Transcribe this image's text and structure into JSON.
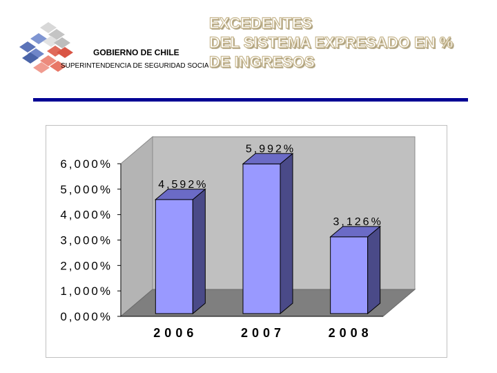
{
  "header": {
    "org_name": "GOBIERNO DE CHILE",
    "org_sub": "SUPERINTENDENCIA DE SEGURIDAD SOCIAL",
    "title_lines": [
      "EXCEDENTES",
      "DEL SISTEMA EXPRESADO EN %",
      "DE INGRESOS"
    ]
  },
  "colors": {
    "bar_front": "#9999ff",
    "bar_side": "#4a4a88",
    "bar_top": "#6b6bc6",
    "wall": "#c0c0c0",
    "floor": "#7f7f7f",
    "rule": "#000094"
  },
  "chart_data": {
    "type": "bar",
    "title": "EXCEDENTES DEL SISTEMA EXPRESADO EN % DE INGRESOS",
    "categories": [
      "2006",
      "2007",
      "2008"
    ],
    "values": [
      4.592,
      5.992,
      3.126
    ],
    "data_labels": [
      "4,592%",
      "5,992%",
      "3,126%"
    ],
    "yticks": [
      0,
      1,
      2,
      3,
      4,
      5,
      6
    ],
    "ytick_labels": [
      "0,000%",
      "1,000%",
      "2,000%",
      "3,000%",
      "4,000%",
      "5,000%",
      "6,000%"
    ],
    "ylim": [
      0,
      6
    ],
    "xlabel": "",
    "ylabel": "",
    "style": "3d-column",
    "grid": false
  }
}
